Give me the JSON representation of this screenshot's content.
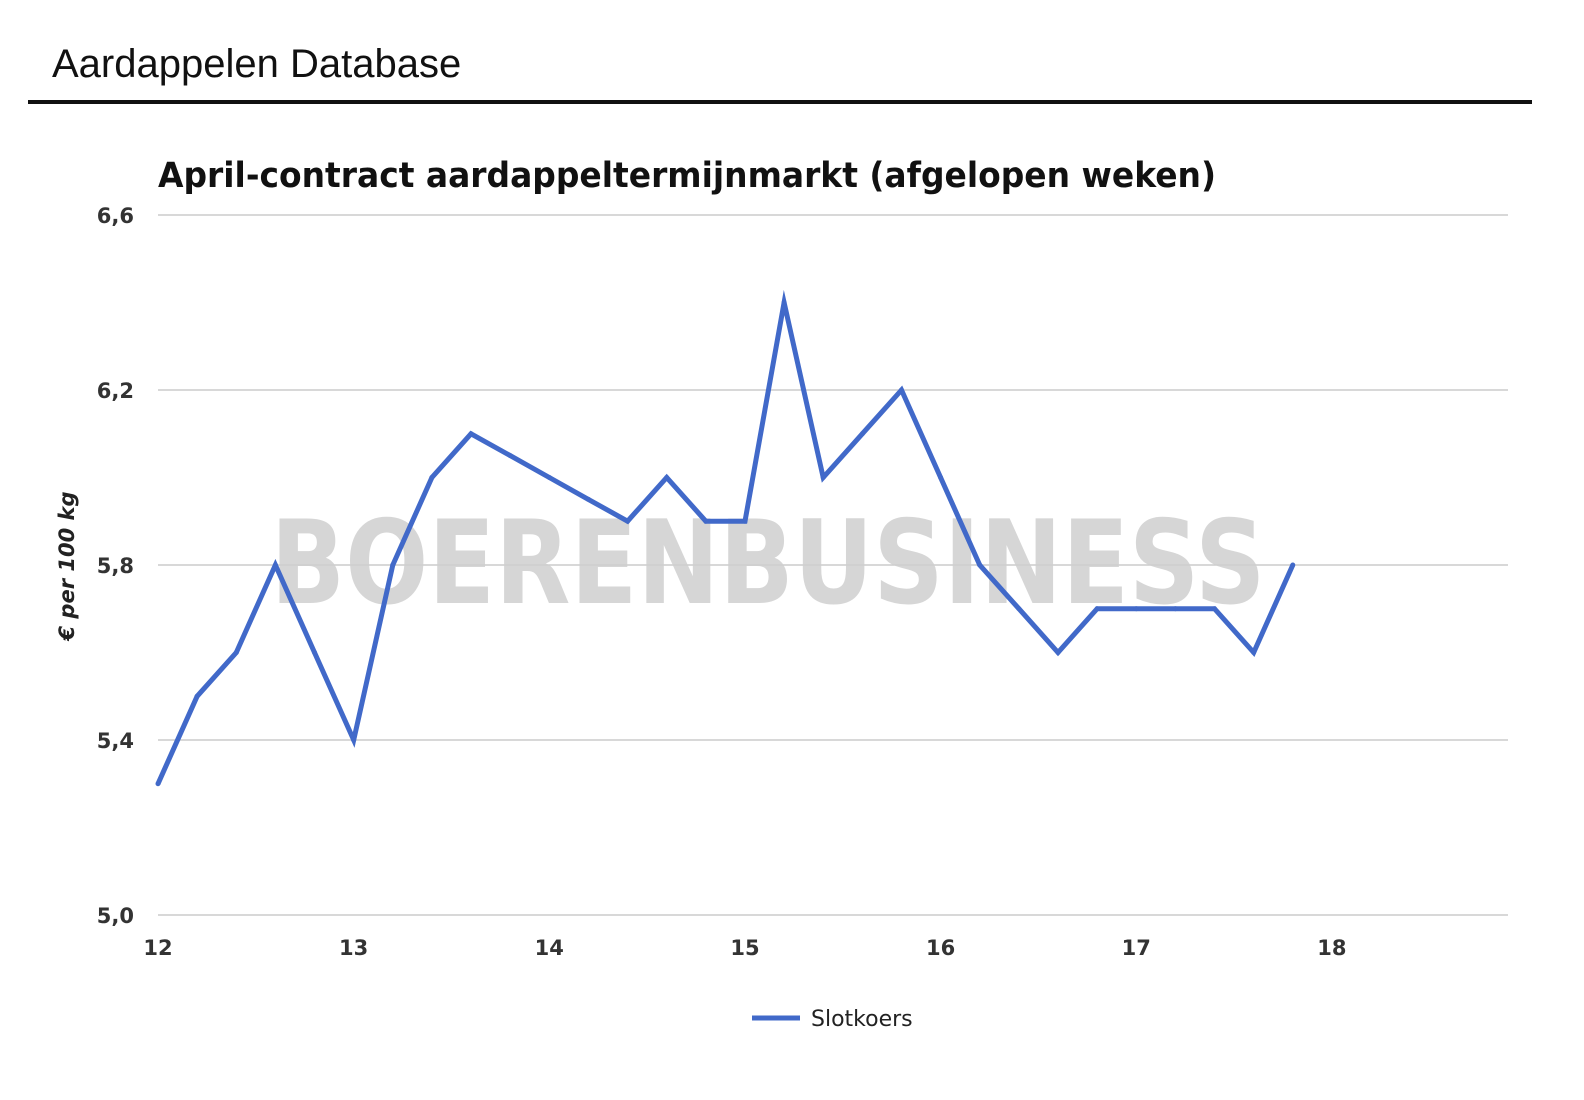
{
  "header": {
    "title": "Aardappelen Database"
  },
  "chart_data": {
    "type": "line",
    "title": "April-contract aardappeltermijnmarkt (afgelopen weken)",
    "xlabel": "",
    "ylabel": "€ per 100 kg",
    "watermark": "BOERENBUSINESS",
    "xlim": [
      12,
      18.9
    ],
    "ylim": [
      5.0,
      6.6
    ],
    "x_ticks": [
      12,
      13,
      14,
      15,
      16,
      17,
      18
    ],
    "y_ticks": [
      5.0,
      5.4,
      5.8,
      6.2,
      6.6
    ],
    "y_tick_labels": [
      "5,0",
      "5,4",
      "5,8",
      "6,2",
      "6,6"
    ],
    "grid": true,
    "legend_position": "bottom-center",
    "series": [
      {
        "name": "Slotkoers",
        "color": "#4169c9",
        "x": [
          12.0,
          12.2,
          12.4,
          12.6,
          12.8,
          13.0,
          13.2,
          13.4,
          13.6,
          13.8,
          14.0,
          14.2,
          14.4,
          14.6,
          14.8,
          15.0,
          15.2,
          15.4,
          15.6,
          15.8,
          16.0,
          16.2,
          16.4,
          16.6,
          16.8,
          17.0,
          17.2,
          17.4,
          17.6,
          17.8
        ],
        "values": [
          5.3,
          5.5,
          5.6,
          5.8,
          5.6,
          5.4,
          5.8,
          6.0,
          6.1,
          6.05,
          6.0,
          5.95,
          5.9,
          6.0,
          5.9,
          5.9,
          6.4,
          6.0,
          6.1,
          6.2,
          6.0,
          5.8,
          5.7,
          5.6,
          5.7,
          5.7,
          5.7,
          5.7,
          5.6,
          5.8
        ]
      }
    ]
  }
}
